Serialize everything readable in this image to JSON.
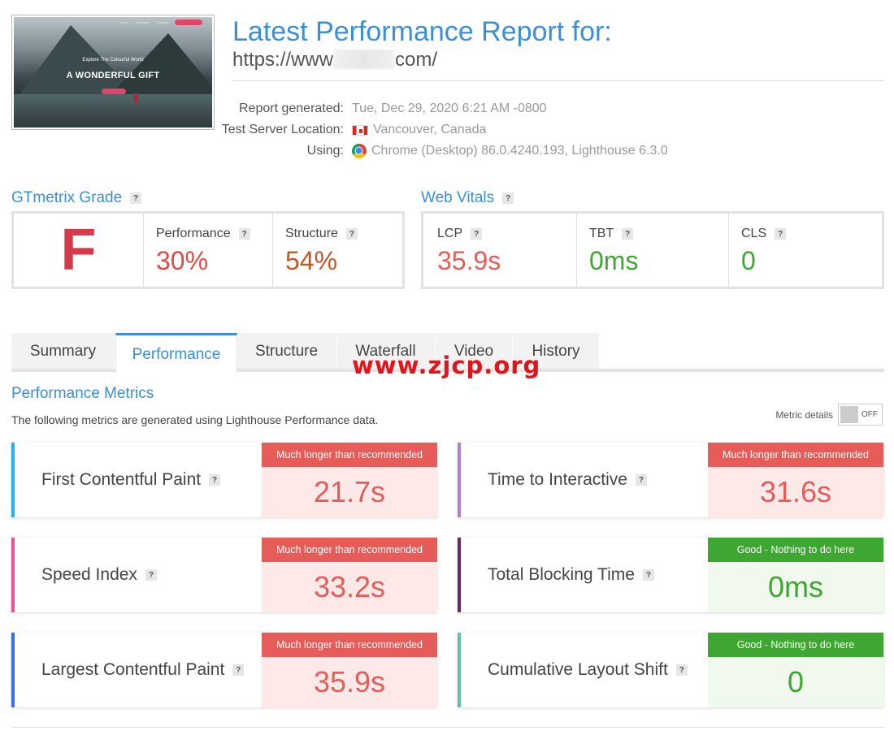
{
  "thumbnail": {
    "nav_items": [
      "Home",
      "Services",
      "Projects",
      "Contact"
    ],
    "subtitle": "Explore The Colourful World",
    "title": "A WONDERFUL GIFT"
  },
  "header": {
    "title": "Latest Performance Report for:",
    "url_prefix": "https://www",
    "url_suffix": "com/"
  },
  "meta": {
    "report_generated_label": "Report generated:",
    "report_generated_value": "Tue, Dec 29, 2020 6:21 AM -0800",
    "server_location_label": "Test Server Location:",
    "server_location_value": "Vancouver, Canada",
    "using_label": "Using:",
    "using_value": "Chrome (Desktop) 86.0.4240.193, Lighthouse 6.3.0"
  },
  "gtmetrix": {
    "heading": "GTmetrix Grade",
    "grade": "F",
    "performance_label": "Performance",
    "performance_value": "30%",
    "structure_label": "Structure",
    "structure_value": "54%"
  },
  "web_vitals": {
    "heading": "Web Vitals",
    "lcp_label": "LCP",
    "lcp_value": "35.9s",
    "tbt_label": "TBT",
    "tbt_value": "0ms",
    "cls_label": "CLS",
    "cls_value": "0"
  },
  "tabs": [
    "Summary",
    "Performance",
    "Structure",
    "Waterfall",
    "Video",
    "History"
  ],
  "active_tab": "Performance",
  "watermark": "www.zjcp.org",
  "performance_metrics": {
    "heading": "Performance Metrics",
    "description": "The following metrics are generated using Lighthouse Performance data.",
    "metric_details_label": "Metric details",
    "toggle_state": "OFF"
  },
  "metrics": [
    {
      "label": "First Contentful Paint",
      "status": "Much longer than recommended",
      "value": "21.7s",
      "rating": "bad",
      "accent": "#2ab0f0"
    },
    {
      "label": "Time to Interactive",
      "status": "Much longer than recommended",
      "value": "31.6s",
      "rating": "bad",
      "accent": "#b07fd0"
    },
    {
      "label": "Speed Index",
      "status": "Much longer than recommended",
      "value": "33.2s",
      "rating": "bad",
      "accent": "#e8559a"
    },
    {
      "label": "Total Blocking Time",
      "status": "Good - Nothing to do here",
      "value": "0ms",
      "rating": "good",
      "accent": "#6a2a5e"
    },
    {
      "label": "Largest Contentful Paint",
      "status": "Much longer than recommended",
      "value": "35.9s",
      "rating": "bad",
      "accent": "#3a6fe0"
    },
    {
      "label": "Cumulative Layout Shift",
      "status": "Good - Nothing to do here",
      "value": "0",
      "rating": "good",
      "accent": "#5cc5a0"
    }
  ],
  "colors": {
    "brand_blue": "#3b8fd6",
    "bad": "#e65c58",
    "good": "#3ea731",
    "structure_orange": "#c0582a"
  }
}
